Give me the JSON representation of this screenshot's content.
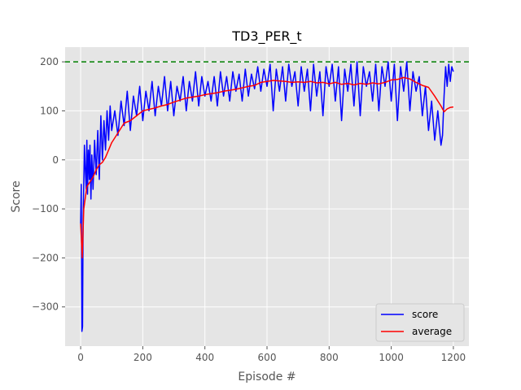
{
  "chart_data": {
    "type": "line",
    "title": "TD3_PER_t",
    "xlabel": "Episode #",
    "ylabel": "Score",
    "xlim": [
      -50,
      1250
    ],
    "ylim": [
      -380,
      230
    ],
    "x_ticks": [
      0,
      200,
      400,
      600,
      800,
      1000,
      1200
    ],
    "x_tick_labels": [
      "0",
      "200",
      "400",
      "600",
      "800",
      "1000",
      "1200"
    ],
    "y_ticks": [
      -300,
      -200,
      -100,
      0,
      100,
      200
    ],
    "y_tick_labels": [
      "−300",
      "−200",
      "−100",
      "0",
      "100",
      "200"
    ],
    "grid": true,
    "background": "#e5e5e5",
    "legend": {
      "placement": "lower-right",
      "entries": [
        "score",
        "average"
      ]
    },
    "reference_line": {
      "y": 200,
      "color": "#008000",
      "style": "dashed"
    },
    "series": [
      {
        "name": "score",
        "color": "#0000ff",
        "x": [
          0,
          2,
          4,
          6,
          8,
          10,
          12,
          15,
          18,
          20,
          22,
          25,
          28,
          30,
          33,
          36,
          40,
          45,
          50,
          55,
          60,
          65,
          70,
          75,
          80,
          85,
          90,
          95,
          100,
          110,
          120,
          130,
          140,
          150,
          160,
          170,
          180,
          190,
          200,
          210,
          220,
          230,
          240,
          250,
          260,
          270,
          280,
          290,
          300,
          310,
          320,
          330,
          340,
          350,
          360,
          370,
          380,
          390,
          400,
          410,
          420,
          430,
          440,
          450,
          460,
          470,
          480,
          490,
          500,
          510,
          520,
          530,
          540,
          550,
          560,
          570,
          580,
          590,
          600,
          610,
          620,
          630,
          640,
          650,
          660,
          670,
          680,
          690,
          700,
          710,
          720,
          730,
          740,
          750,
          760,
          770,
          780,
          790,
          800,
          810,
          820,
          830,
          840,
          850,
          860,
          870,
          880,
          890,
          900,
          910,
          920,
          930,
          940,
          950,
          960,
          970,
          980,
          990,
          1000,
          1010,
          1020,
          1030,
          1040,
          1050,
          1060,
          1070,
          1080,
          1090,
          1100,
          1110,
          1120,
          1130,
          1140,
          1150,
          1160,
          1165,
          1170,
          1175,
          1180,
          1185,
          1190,
          1195,
          1200
        ],
        "y": [
          -130,
          -50,
          -350,
          -340,
          -120,
          -50,
          30,
          -20,
          -60,
          40,
          -70,
          20,
          -40,
          30,
          -80,
          10,
          -60,
          40,
          -30,
          60,
          -40,
          90,
          0,
          80,
          20,
          100,
          40,
          110,
          60,
          100,
          50,
          120,
          70,
          140,
          60,
          130,
          90,
          150,
          80,
          140,
          100,
          160,
          90,
          150,
          110,
          170,
          100,
          160,
          90,
          150,
          120,
          170,
          100,
          160,
          120,
          180,
          110,
          170,
          130,
          160,
          120,
          170,
          110,
          180,
          130,
          170,
          120,
          180,
          140,
          175,
          120,
          185,
          130,
          175,
          145,
          190,
          140,
          185,
          150,
          195,
          100,
          185,
          140,
          190,
          120,
          195,
          150,
          180,
          110,
          190,
          140,
          185,
          100,
          195,
          130,
          180,
          90,
          190,
          150,
          195,
          120,
          190,
          80,
          185,
          140,
          195,
          110,
          200,
          90,
          190,
          150,
          180,
          120,
          195,
          100,
          190,
          150,
          200,
          120,
          195,
          80,
          190,
          140,
          200,
          100,
          180,
          140,
          170,
          90,
          150,
          60,
          120,
          40,
          100,
          30,
          50,
          130,
          190,
          150,
          195,
          160,
          190,
          180
        ]
      },
      {
        "name": "average",
        "color": "#ff0000",
        "x": [
          0,
          5,
          10,
          20,
          30,
          40,
          50,
          60,
          70,
          80,
          90,
          100,
          120,
          140,
          160,
          180,
          200,
          220,
          240,
          260,
          280,
          300,
          320,
          340,
          360,
          380,
          400,
          420,
          440,
          460,
          480,
          500,
          520,
          540,
          560,
          580,
          600,
          620,
          640,
          660,
          680,
          700,
          720,
          740,
          760,
          780,
          800,
          820,
          840,
          860,
          880,
          900,
          920,
          940,
          960,
          980,
          1000,
          1020,
          1040,
          1060,
          1080,
          1100,
          1120,
          1140,
          1160,
          1170,
          1180,
          1190,
          1200
        ],
        "y": [
          -130,
          -200,
          -100,
          -55,
          -45,
          -35,
          -20,
          -10,
          -5,
          5,
          20,
          35,
          55,
          75,
          80,
          90,
          100,
          103,
          106,
          110,
          113,
          118,
          122,
          126,
          128,
          130,
          133,
          135,
          137,
          140,
          142,
          144,
          147,
          150,
          152,
          158,
          160,
          162,
          161,
          160,
          158,
          159,
          158,
          160,
          157,
          158,
          155,
          158,
          154,
          156,
          153,
          156,
          154,
          157,
          155,
          158,
          163,
          164,
          168,
          165,
          158,
          152,
          148,
          130,
          110,
          98,
          104,
          107,
          108
        ]
      }
    ]
  }
}
